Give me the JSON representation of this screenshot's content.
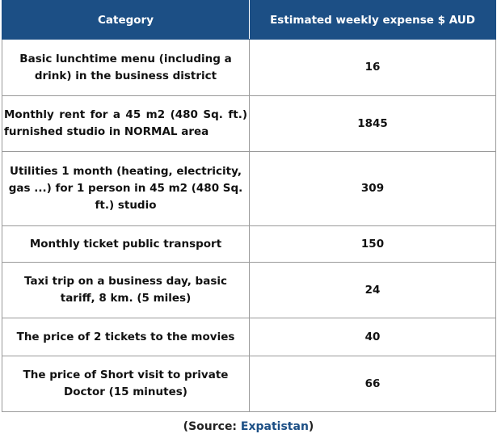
{
  "table": {
    "headers": [
      "Category",
      "Estimated weekly expense $ AUD"
    ],
    "rows": [
      {
        "category": "Basic lunchtime menu (including a drink) in the business district",
        "value": "16"
      },
      {
        "category": "Monthly rent for a 45 m2 (480 Sq. ft.) furnished studio in NORMAL area",
        "value": "1845"
      },
      {
        "category": "Utilities 1 month (heating, electricity, gas ...) for 1 person in 45 m2 (480 Sq. ft.) studio",
        "value": "309"
      },
      {
        "category": "Monthly ticket public transport",
        "value": "150"
      },
      {
        "category": "Taxi trip on a business day, basic tariff, 8 km. (5 miles)",
        "value": "24"
      },
      {
        "category": "The price of 2 tickets to the movies",
        "value": "40"
      },
      {
        "category": "The price of Short visit to private Doctor (15 minutes)",
        "value": "66"
      }
    ]
  },
  "source": {
    "prefix": "(Source: ",
    "link_text": "Expatistan",
    "suffix": ")"
  },
  "colors": {
    "header_bg": "#1c4f85",
    "link": "#1c4f85"
  }
}
